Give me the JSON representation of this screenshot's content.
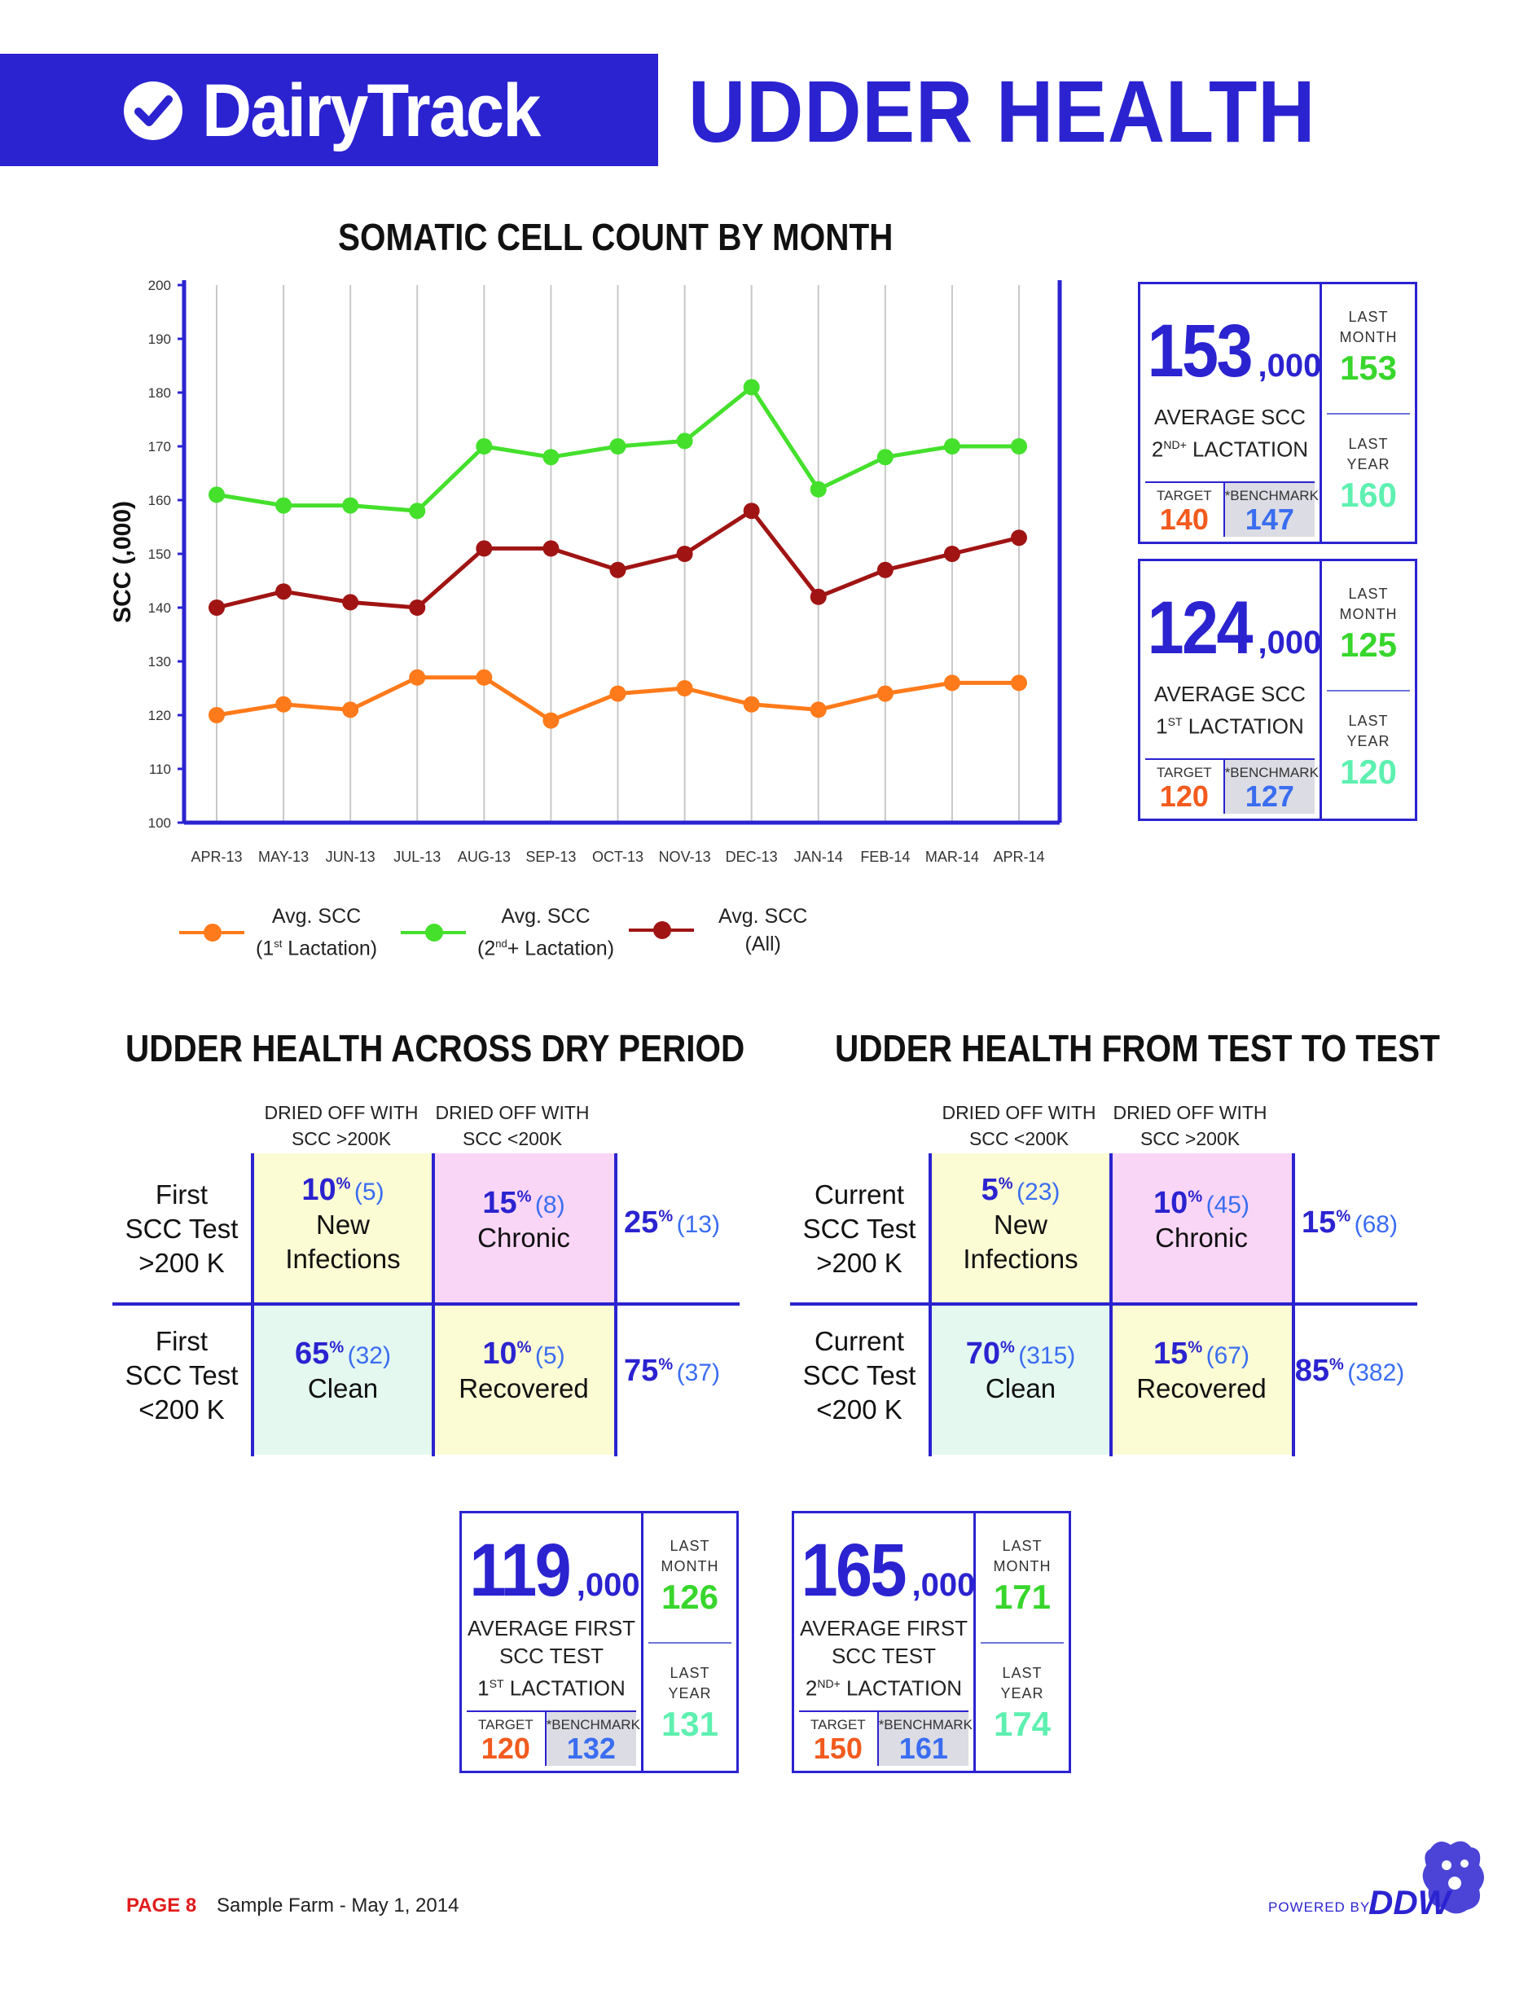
{
  "header": {
    "logo_text": "DairyTrack",
    "title": "UDDER HEALTH"
  },
  "chart_section": {
    "title": "SOMATIC CELL COUNT BY MONTH"
  },
  "chart_data": {
    "type": "line",
    "title": "SOMATIC CELL COUNT BY MONTH",
    "xlabel": "",
    "ylabel": "SCC (,000)",
    "ylim": [
      100,
      200
    ],
    "yticks": [
      100,
      110,
      120,
      130,
      140,
      150,
      160,
      170,
      180,
      190,
      200
    ],
    "categories": [
      "APR-13",
      "MAY-13",
      "JUN-13",
      "JUL-13",
      "AUG-13",
      "SEP-13",
      "OCT-13",
      "NOV-13",
      "DEC-13",
      "JAN-14",
      "FEB-14",
      "MAR-14",
      "APR-14"
    ],
    "grid": "vertical",
    "series": [
      {
        "name": "Avg. SCC (1st Lactation)",
        "color": "#ff7a1a",
        "values": [
          120,
          122,
          121,
          127,
          127,
          119,
          124,
          125,
          122,
          121,
          124,
          126,
          126
        ]
      },
      {
        "name": "Avg. SCC (2nd+ Lactation)",
        "color": "#44e02c",
        "values": [
          161,
          159,
          159,
          158,
          170,
          168,
          170,
          171,
          181,
          162,
          168,
          170,
          170
        ]
      },
      {
        "name": "Avg. SCC (All)",
        "color": "#a01414",
        "values": [
          140,
          143,
          141,
          140,
          151,
          151,
          147,
          150,
          158,
          142,
          147,
          150,
          153
        ]
      }
    ]
  },
  "legend": [
    {
      "line1": "Avg. SCC",
      "line2_pre": "(1",
      "sup": "st",
      "line2_post": " Lactation)",
      "color": "#ff7a1a"
    },
    {
      "line1": "Avg. SCC",
      "line2_pre": "(2",
      "sup": "nd",
      "line2_post": "+ Lactation)",
      "color": "#44e02c"
    },
    {
      "line1": "Avg. SCC",
      "line2_pre": "(All)",
      "sup": "",
      "line2_post": "",
      "color": "#a01414"
    }
  ],
  "stat_2nd": {
    "big": "153",
    "unit": ",000",
    "label1": "AVERAGE SCC",
    "label2_pre": "2",
    "label2_sup": "ND+",
    "label2_post": " LACTATION",
    "target_label": "TARGET",
    "target": "140",
    "bench_label": "*BENCHMARK",
    "bench": "147",
    "last_month_label1": "LAST",
    "last_month_label2": "MONTH",
    "last_month": "153",
    "last_year_label1": "LAST",
    "last_year_label2": "YEAR",
    "last_year": "160"
  },
  "stat_1st": {
    "big": "124",
    "unit": ",000",
    "label1": "AVERAGE SCC",
    "label2_pre": "1",
    "label2_sup": "ST",
    "label2_post": " LACTATION",
    "target_label": "TARGET",
    "target": "120",
    "bench_label": "*BENCHMARK",
    "bench": "127",
    "last_month_label1": "LAST",
    "last_month_label2": "MONTH",
    "last_month": "125",
    "last_year_label1": "LAST",
    "last_year_label2": "YEAR",
    "last_year": "120"
  },
  "dry_period": {
    "title": "UDDER HEALTH ACROSS DRY PERIOD",
    "col1": [
      "DRIED OFF WITH",
      "SCC >200K"
    ],
    "col2": [
      "DRIED OFF WITH",
      "SCC <200K"
    ],
    "row1": [
      "First",
      "SCC Test",
      ">200 K"
    ],
    "row2": [
      "First",
      "SCC Test",
      "<200 K"
    ],
    "c11": {
      "pct": "10",
      "cnt": "(5)",
      "w1": "New",
      "w2": "Infections"
    },
    "c12": {
      "pct": "15",
      "cnt": "(8)",
      "w1": "Chronic",
      "w2": ""
    },
    "c21": {
      "pct": "65",
      "cnt": "(32)",
      "w1": "Clean",
      "w2": ""
    },
    "c22": {
      "pct": "10",
      "cnt": "(5)",
      "w1": "Recovered",
      "w2": ""
    },
    "t1": {
      "pct": "25",
      "cnt": "(13)"
    },
    "t2": {
      "pct": "75",
      "cnt": "(37)"
    }
  },
  "test_to_test": {
    "title": "UDDER HEALTH FROM TEST TO TEST",
    "col1": [
      "DRIED OFF WITH",
      "SCC <200K"
    ],
    "col2": [
      "DRIED OFF WITH",
      "SCC >200K"
    ],
    "row1": [
      "Current",
      "SCC Test",
      ">200 K"
    ],
    "row2": [
      "Current",
      "SCC Test",
      "<200 K"
    ],
    "c11": {
      "pct": "5",
      "cnt": "(23)",
      "w1": "New",
      "w2": "Infections"
    },
    "c12": {
      "pct": "10",
      "cnt": "(45)",
      "w1": "Chronic",
      "w2": ""
    },
    "c21": {
      "pct": "70",
      "cnt": "(315)",
      "w1": "Clean",
      "w2": ""
    },
    "c22": {
      "pct": "15",
      "cnt": "(67)",
      "w1": "Recovered",
      "w2": ""
    },
    "t1": {
      "pct": "15",
      "cnt": "(68)"
    },
    "t2": {
      "pct": "85",
      "cnt": "(382)"
    }
  },
  "stat_first_1st": {
    "big": "119",
    "unit": ",000",
    "label1": "AVERAGE FIRST",
    "label2": "SCC TEST",
    "label3_pre": "1",
    "label3_sup": "ST",
    "label3_post": " LACTATION",
    "target_label": "TARGET",
    "target": "120",
    "bench_label": "*BENCHMARK",
    "bench": "132",
    "last_month_label1": "LAST",
    "last_month_label2": "MONTH",
    "last_month": "126",
    "last_year_label1": "LAST",
    "last_year_label2": "YEAR",
    "last_year": "131"
  },
  "stat_first_2nd": {
    "big": "165",
    "unit": ",000",
    "label1": "AVERAGE FIRST",
    "label2": "SCC TEST",
    "label3_pre": "2",
    "label3_sup": "ND+",
    "label3_post": " LACTATION",
    "target_label": "TARGET",
    "target": "150",
    "bench_label": "*BENCHMARK",
    "bench": "161",
    "last_month_label1": "LAST",
    "last_month_label2": "MONTH",
    "last_month": "171",
    "last_year_label1": "LAST",
    "last_year_label2": "YEAR",
    "last_year": "174"
  },
  "footer": {
    "page": "PAGE 8",
    "farm": "Sample Farm - May 1, 2014",
    "powered": "POWERED BY",
    "brand": "DDW"
  }
}
